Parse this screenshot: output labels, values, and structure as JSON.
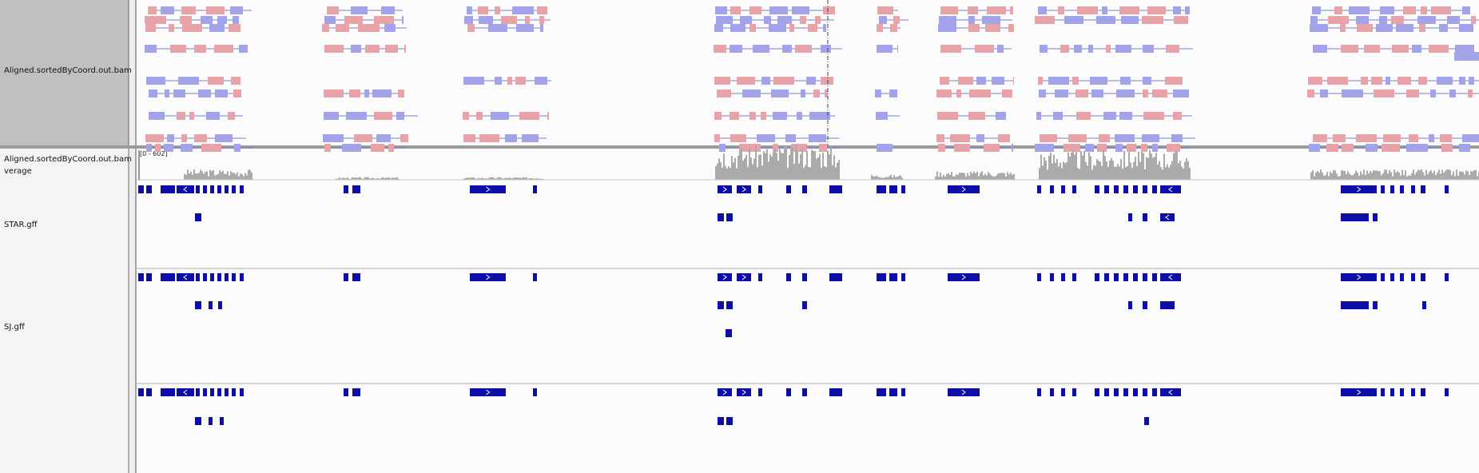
{
  "tracks": {
    "bam_alignment": {
      "label": "Aligned.sortedByCoord.out.bam"
    },
    "bam_coverage": {
      "label_line1": "Aligned.sortedByCoord.out.bam",
      "label_line2": "verage",
      "range": "[0 - 602]"
    },
    "star_gff": {
      "label": "STAR.gff"
    },
    "sj_gff": {
      "label": "SJ.gff"
    }
  },
  "colors": {
    "label_panel_selected": "#c0c0c0",
    "label_panel": "#f4f4f4",
    "data_bg": "#fbfbfb",
    "read_forward": "#e8a3a8",
    "read_reverse": "#a3a3ea",
    "intron_line": "#7b7bd6",
    "coverage": "#aaaaaa",
    "feature": "#0d0daa",
    "divider": "#b0b0b0"
  },
  "icons": {
    "feature_forward": "chevron-right-icon",
    "feature_reverse": "chevron-left-icon",
    "center_line": "dashed-center-guide"
  }
}
